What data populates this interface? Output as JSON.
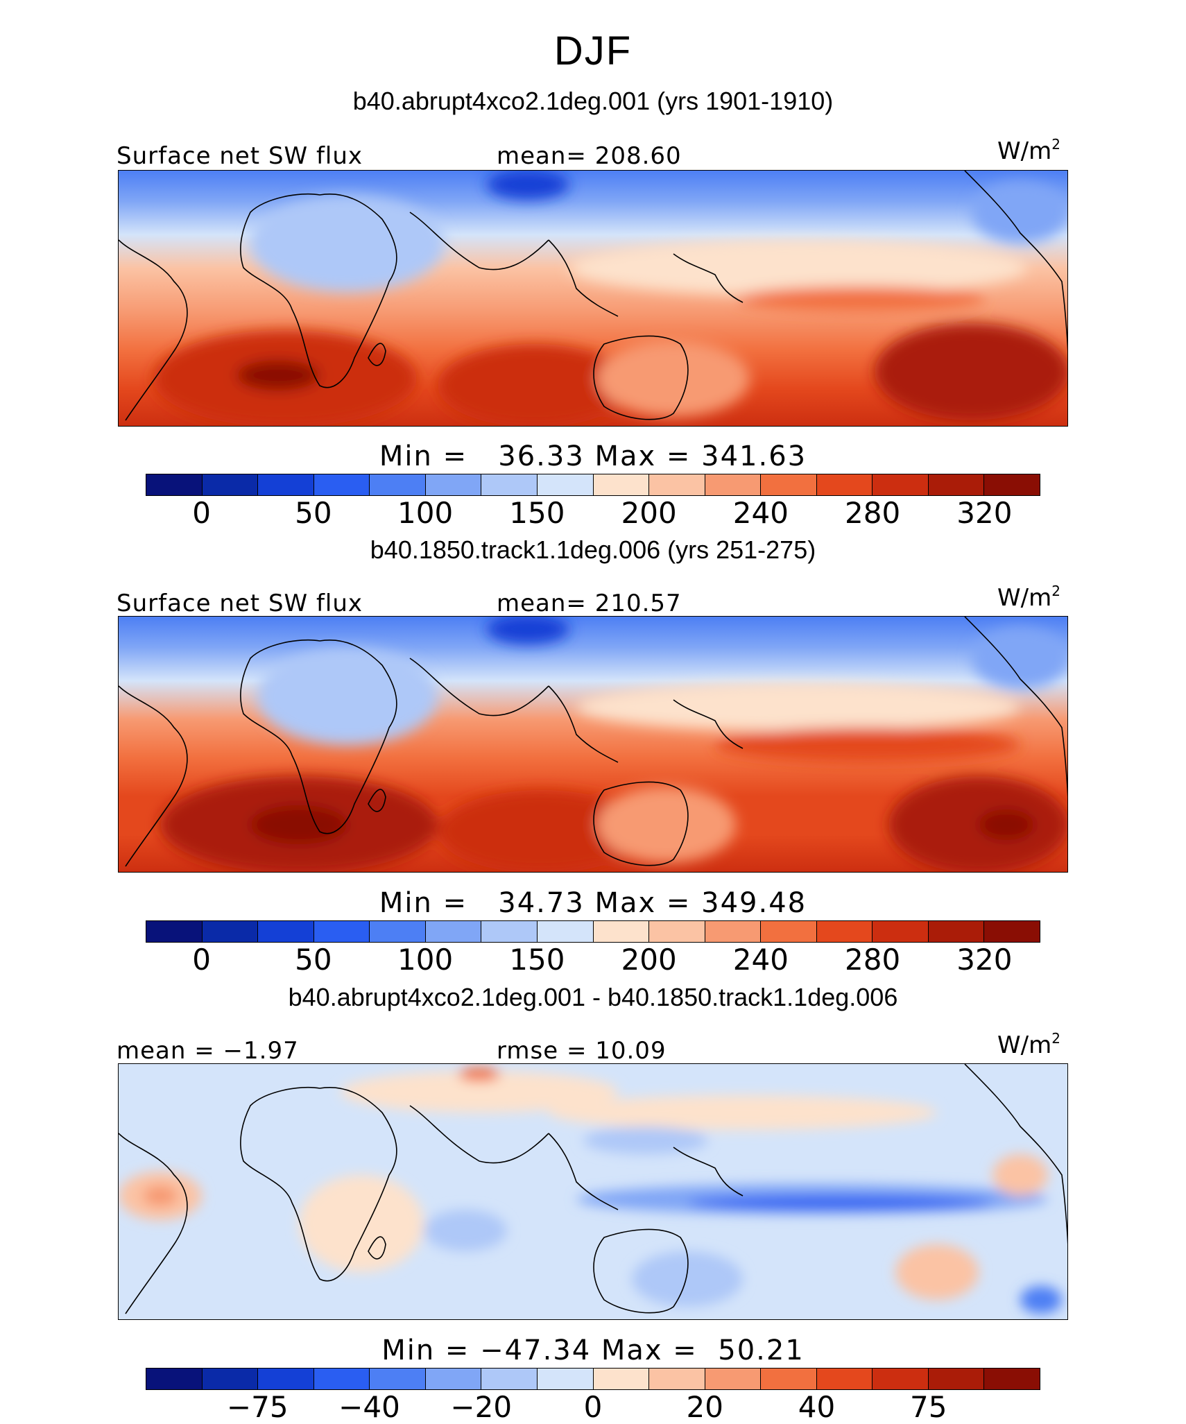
{
  "title": "DJF",
  "panels": [
    {
      "case_title": "b40.abrupt4xco2.1deg.001 (yrs 1901-1910)",
      "left_label": "Surface net SW flux",
      "center_label": "mean= 208.60",
      "units": "W/m",
      "units_exp": "2",
      "minmax": "Min =   36.33 Max = 341.63",
      "colorbar_colors": [
        "#08127a",
        "#0a2aa8",
        "#1440d6",
        "#2a5ef2",
        "#4d7ff4",
        "#80a6f6",
        "#aec8f8",
        "#d4e4fa",
        "#fde2cc",
        "#fbc3a4",
        "#f79a72",
        "#f2703f",
        "#e4481d",
        "#cc2e10",
        "#aa1c08",
        "#8a0e04"
      ],
      "colorbar_ticks": [
        "0",
        "50",
        "100",
        "150",
        "200",
        "240",
        "280",
        "320"
      ]
    },
    {
      "case_title": "b40.1850.track1.1deg.006 (yrs 251-275)",
      "left_label": "Surface net SW flux",
      "center_label": "mean= 210.57",
      "units": "W/m",
      "units_exp": "2",
      "minmax": "Min =   34.73 Max = 349.48",
      "colorbar_colors": [
        "#08127a",
        "#0a2aa8",
        "#1440d6",
        "#2a5ef2",
        "#4d7ff4",
        "#80a6f6",
        "#aec8f8",
        "#d4e4fa",
        "#fde2cc",
        "#fbc3a4",
        "#f79a72",
        "#f2703f",
        "#e4481d",
        "#cc2e10",
        "#aa1c08",
        "#8a0e04"
      ],
      "colorbar_ticks": [
        "0",
        "50",
        "100",
        "150",
        "200",
        "240",
        "280",
        "320"
      ]
    },
    {
      "case_title": "b40.abrupt4xco2.1deg.001 - b40.1850.track1.1deg.006",
      "left_label": "mean =  −1.97",
      "center_label": "rmse =   10.09",
      "units": "W/m",
      "units_exp": "2",
      "minmax": "Min = −47.34 Max =  50.21",
      "colorbar_colors": [
        "#08127a",
        "#0a2aa8",
        "#1440d6",
        "#2a5ef2",
        "#4d7ff4",
        "#80a6f6",
        "#aec8f8",
        "#d4e4fa",
        "#fde2cc",
        "#fbc3a4",
        "#f79a72",
        "#f2703f",
        "#e4481d",
        "#cc2e10",
        "#aa1c08",
        "#8a0e04"
      ],
      "colorbar_ticks": [
        "−75",
        "−40",
        "−20",
        "0",
        "20",
        "40",
        "75"
      ]
    }
  ]
}
